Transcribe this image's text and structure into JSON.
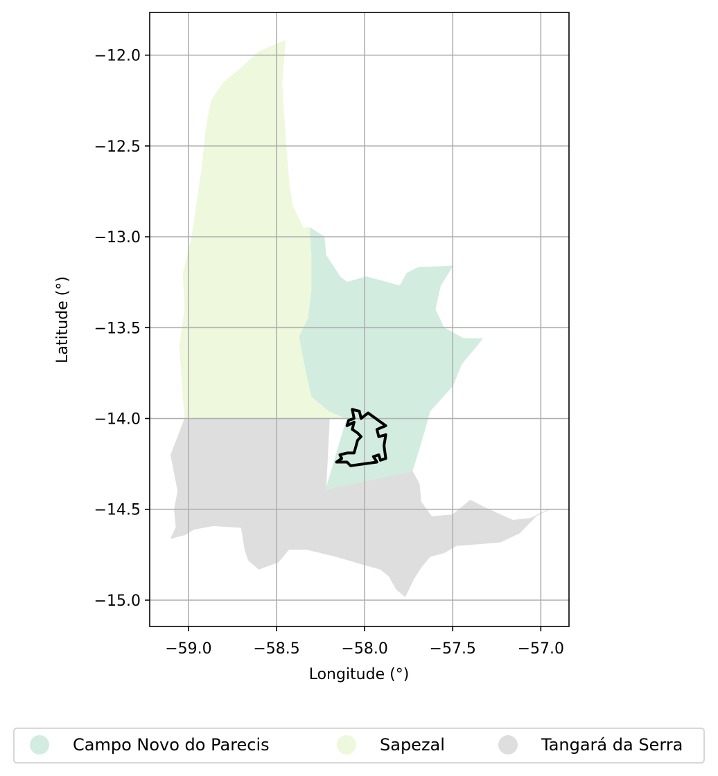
{
  "chart_data": {
    "type": "map",
    "xlabel": "Longitude (°)",
    "ylabel": "Latitude (°)",
    "xlim": [
      -59.22,
      -56.84
    ],
    "ylim": [
      -15.145,
      -11.765
    ],
    "x_ticks": [
      {
        "value": -59.0,
        "label": "−59.0"
      },
      {
        "value": -58.5,
        "label": "−58.5"
      },
      {
        "value": -58.0,
        "label": "−58.0"
      },
      {
        "value": -57.5,
        "label": "−57.5"
      },
      {
        "value": -57.0,
        "label": "−57.0"
      }
    ],
    "y_ticks": [
      {
        "value": -12.0,
        "label": "−12.0"
      },
      {
        "value": -12.5,
        "label": "−12.5"
      },
      {
        "value": -13.0,
        "label": "−13.0"
      },
      {
        "value": -13.5,
        "label": "−13.5"
      },
      {
        "value": -14.0,
        "label": "−14.0"
      },
      {
        "value": -14.5,
        "label": "−14.5"
      },
      {
        "value": -15.0,
        "label": "−15.0"
      }
    ],
    "grid": true,
    "legend_position": "bottom",
    "regions": [
      {
        "name": "Tangará da Serra",
        "color": "#dedede",
        "coords": [
          [
            -59.02,
            -14.0
          ],
          [
            -58.2,
            -14.0
          ],
          [
            -58.22,
            -14.39
          ],
          [
            -57.73,
            -14.29
          ],
          [
            -57.69,
            -14.36
          ],
          [
            -57.68,
            -14.46
          ],
          [
            -57.62,
            -14.54
          ],
          [
            -57.5,
            -14.53
          ],
          [
            -57.4,
            -14.45
          ],
          [
            -57.32,
            -14.49
          ],
          [
            -57.16,
            -14.56
          ],
          [
            -57.06,
            -14.55
          ],
          [
            -56.95,
            -14.5
          ],
          [
            -57.02,
            -14.53
          ],
          [
            -57.12,
            -14.63
          ],
          [
            -57.23,
            -14.68
          ],
          [
            -57.35,
            -14.69
          ],
          [
            -57.48,
            -14.7
          ],
          [
            -57.55,
            -14.74
          ],
          [
            -57.63,
            -14.76
          ],
          [
            -57.68,
            -14.82
          ],
          [
            -57.72,
            -14.88
          ],
          [
            -57.77,
            -14.98
          ],
          [
            -57.82,
            -14.94
          ],
          [
            -57.86,
            -14.87
          ],
          [
            -57.91,
            -14.83
          ],
          [
            -58.02,
            -14.8
          ],
          [
            -58.16,
            -14.76
          ],
          [
            -58.33,
            -14.72
          ],
          [
            -58.43,
            -14.72
          ],
          [
            -58.49,
            -14.79
          ],
          [
            -58.6,
            -14.83
          ],
          [
            -58.66,
            -14.78
          ],
          [
            -58.68,
            -14.72
          ],
          [
            -58.7,
            -14.6
          ],
          [
            -58.86,
            -14.59
          ],
          [
            -58.97,
            -14.61
          ],
          [
            -59.02,
            -14.64
          ],
          [
            -59.1,
            -14.66
          ],
          [
            -59.07,
            -14.6
          ],
          [
            -59.08,
            -14.5
          ],
          [
            -59.06,
            -14.4
          ],
          [
            -59.08,
            -14.3
          ],
          [
            -59.1,
            -14.2
          ],
          [
            -59.06,
            -14.1
          ]
        ]
      },
      {
        "name": "Sapezal",
        "color": "#eef8dc",
        "coords": [
          [
            -58.45,
            -11.92
          ],
          [
            -58.47,
            -12.15
          ],
          [
            -58.45,
            -12.45
          ],
          [
            -58.43,
            -12.7
          ],
          [
            -58.41,
            -12.83
          ],
          [
            -58.35,
            -12.95
          ],
          [
            -58.31,
            -12.95
          ],
          [
            -58.3,
            -13.1
          ],
          [
            -58.3,
            -13.3
          ],
          [
            -58.32,
            -13.45
          ],
          [
            -58.37,
            -13.55
          ],
          [
            -58.33,
            -13.75
          ],
          [
            -58.3,
            -13.88
          ],
          [
            -58.2,
            -13.96
          ],
          [
            -58.1,
            -14.0
          ],
          [
            -59.02,
            -14.0
          ],
          [
            -59.03,
            -13.88
          ],
          [
            -59.05,
            -13.6
          ],
          [
            -59.02,
            -13.4
          ],
          [
            -59.03,
            -13.2
          ],
          [
            -58.98,
            -13.0
          ],
          [
            -58.95,
            -12.8
          ],
          [
            -58.92,
            -12.6
          ],
          [
            -58.9,
            -12.4
          ],
          [
            -58.87,
            -12.25
          ],
          [
            -58.8,
            -12.15
          ],
          [
            -58.7,
            -12.07
          ],
          [
            -58.6,
            -11.98
          ]
        ]
      },
      {
        "name": "Campo Novo do Parecis",
        "color": "#d2ece0",
        "coords": [
          [
            -58.31,
            -12.95
          ],
          [
            -58.23,
            -13.0
          ],
          [
            -58.22,
            -13.1
          ],
          [
            -58.14,
            -13.22
          ],
          [
            -58.1,
            -13.25
          ],
          [
            -57.99,
            -13.22
          ],
          [
            -57.8,
            -13.27
          ],
          [
            -57.76,
            -13.2
          ],
          [
            -57.7,
            -13.17
          ],
          [
            -57.5,
            -13.16
          ],
          [
            -57.57,
            -13.27
          ],
          [
            -57.6,
            -13.4
          ],
          [
            -57.55,
            -13.5
          ],
          [
            -57.44,
            -13.56
          ],
          [
            -57.33,
            -13.56
          ],
          [
            -57.45,
            -13.7
          ],
          [
            -57.5,
            -13.82
          ],
          [
            -57.63,
            -13.96
          ],
          [
            -57.67,
            -14.1
          ],
          [
            -57.73,
            -14.29
          ],
          [
            -58.22,
            -14.39
          ],
          [
            -58.1,
            -14.0
          ],
          [
            -58.2,
            -13.96
          ],
          [
            -58.3,
            -13.88
          ],
          [
            -58.33,
            -13.75
          ],
          [
            -58.37,
            -13.55
          ],
          [
            -58.32,
            -13.45
          ],
          [
            -58.3,
            -13.3
          ],
          [
            -58.3,
            -13.1
          ]
        ]
      }
    ],
    "boundary": {
      "color": "#000000",
      "coords": [
        [
          -58.07,
          -13.95
        ],
        [
          -58.03,
          -13.96
        ],
        [
          -58.02,
          -14.0
        ],
        [
          -57.98,
          -13.97
        ],
        [
          -57.88,
          -14.04
        ],
        [
          -57.93,
          -14.06
        ],
        [
          -57.92,
          -14.1
        ],
        [
          -57.88,
          -14.09
        ],
        [
          -57.89,
          -14.15
        ],
        [
          -57.88,
          -14.22
        ],
        [
          -57.91,
          -14.23
        ],
        [
          -57.92,
          -14.2
        ],
        [
          -57.95,
          -14.21
        ],
        [
          -57.93,
          -14.24
        ],
        [
          -58.08,
          -14.26
        ],
        [
          -58.1,
          -14.24
        ],
        [
          -58.16,
          -14.24
        ],
        [
          -58.13,
          -14.22
        ],
        [
          -58.14,
          -14.2
        ],
        [
          -58.1,
          -14.19
        ],
        [
          -58.06,
          -14.19
        ],
        [
          -58.04,
          -14.12
        ],
        [
          -58.02,
          -14.1
        ],
        [
          -58.04,
          -14.08
        ],
        [
          -58.07,
          -14.06
        ],
        [
          -58.06,
          -14.02
        ],
        [
          -58.1,
          -14.04
        ],
        [
          -58.09,
          -14.01
        ],
        [
          -58.06,
          -14.0
        ]
      ]
    }
  },
  "legend": {
    "items": [
      {
        "label": "Campo Novo do Parecis",
        "color": "#d2ece0"
      },
      {
        "label": "Sapezal",
        "color": "#eef8dc"
      },
      {
        "label": "Tangará da Serra",
        "color": "#dedede"
      }
    ]
  }
}
